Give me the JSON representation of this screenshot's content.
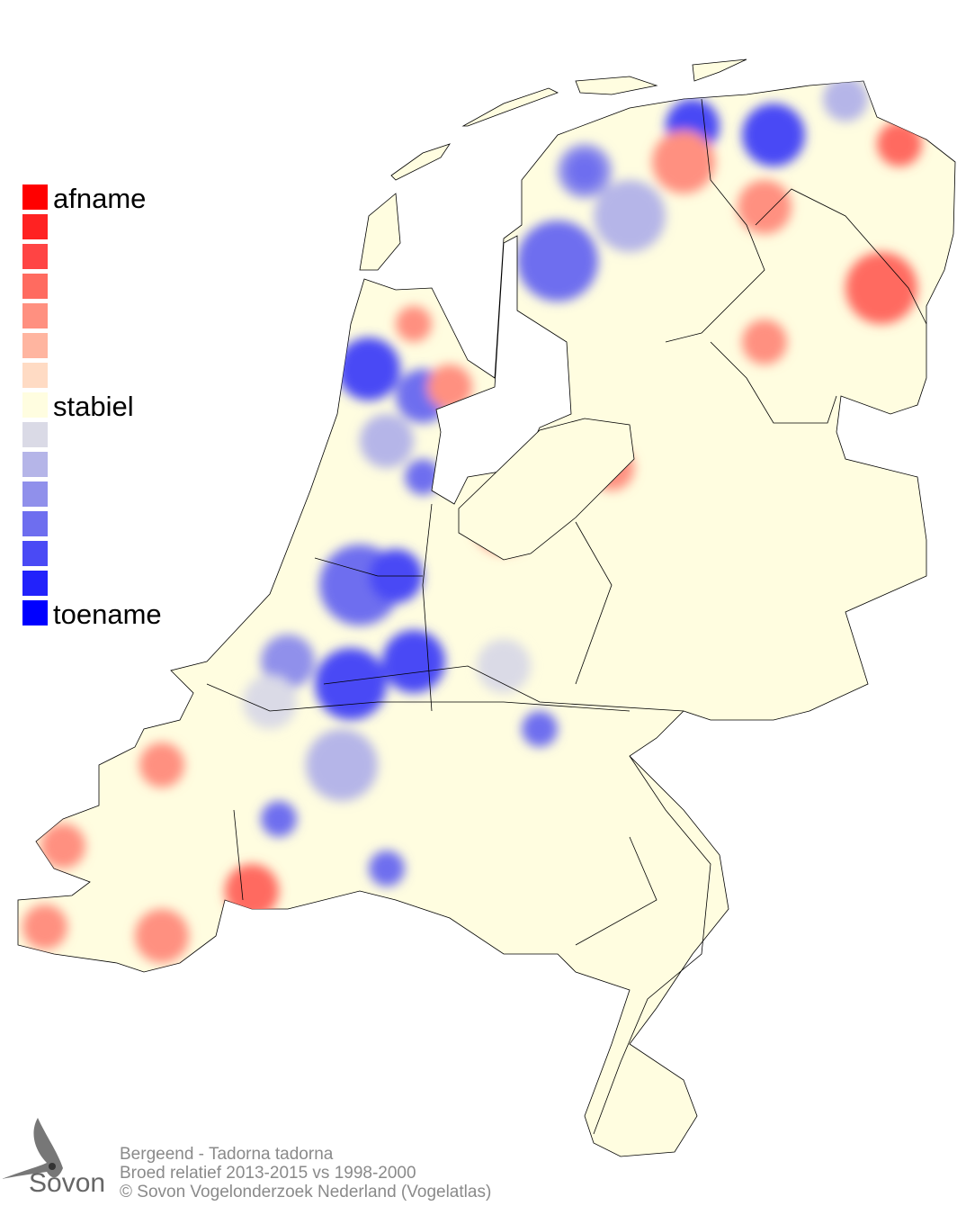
{
  "legend": {
    "labels": {
      "top": "afname",
      "middle": "stabiel",
      "bottom": "toename"
    },
    "colors": [
      "#ff0000",
      "#ff2222",
      "#ff4444",
      "#ff6b60",
      "#ff9080",
      "#ffb5a0",
      "#ffdbc4",
      "#fffde0",
      "#dadae6",
      "#b5b5e8",
      "#9090eb",
      "#6e6eef",
      "#4a4af5",
      "#2222fb",
      "#0000ff"
    ]
  },
  "map_colors": {
    "stable": "#fffde0",
    "outline": "#000000"
  },
  "footer": {
    "species": "Bergeend - Tadorna tadorna",
    "period": "Broed relatief 2013-2015 vs 1998-2000",
    "copyright": "© Sovon Vogelonderzoek Nederland (Vogelatlas)"
  },
  "logo": {
    "text": "Sovon"
  }
}
